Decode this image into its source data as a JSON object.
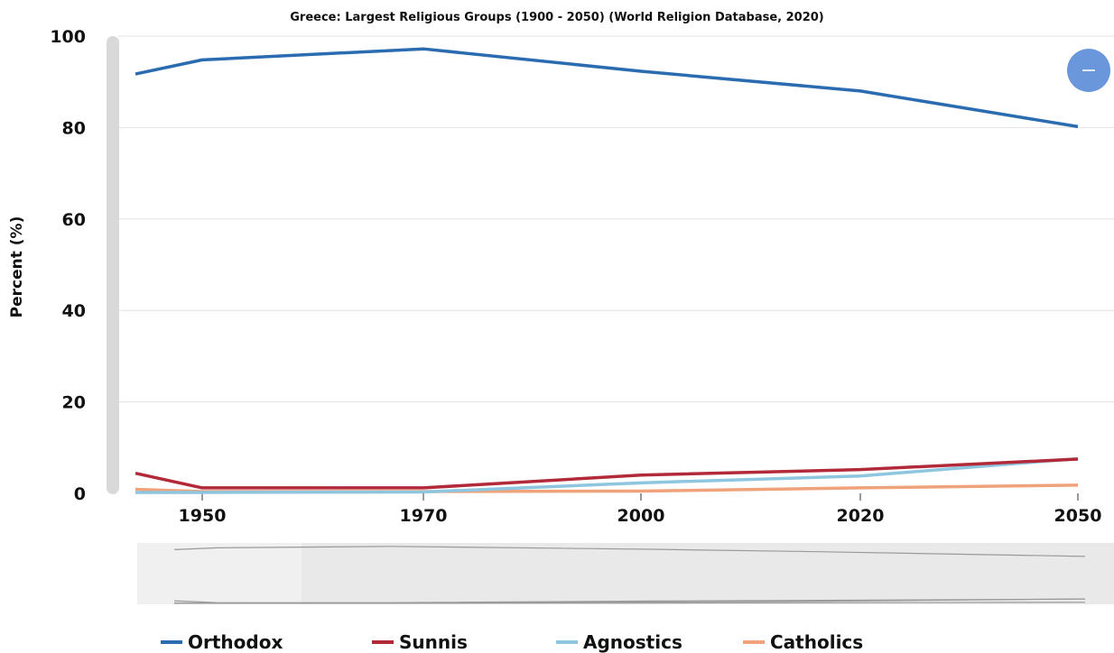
{
  "chart_data": {
    "type": "line",
    "title": "Greece: Largest Religious Groups  (1900 - 2050) (World Religion Database, 2020)",
    "xlabel": "",
    "ylabel": "Percent (%)",
    "x": [
      1945,
      1950,
      1970,
      2000,
      2020,
      2050
    ],
    "x_ticks": [
      1950,
      1970,
      2000,
      2020,
      2050
    ],
    "y_ticks": [
      0,
      20,
      40,
      60,
      80,
      100
    ],
    "ylim": [
      0,
      100
    ],
    "grid": true,
    "legend_position": "bottom",
    "series": [
      {
        "name": "Orthodox",
        "color": "#2b6cb0",
        "values": [
          91.7,
          94.8,
          97.2,
          92.3,
          88.0,
          80.2
        ]
      },
      {
        "name": "Sunnis",
        "color": "#b22a3a",
        "values": [
          4.4,
          1.2,
          1.2,
          4.0,
          5.2,
          7.5
        ]
      },
      {
        "name": "Agnostics",
        "color": "#8ec6e0",
        "values": [
          0.2,
          0.2,
          0.3,
          2.3,
          3.8,
          7.6
        ]
      },
      {
        "name": "Catholics",
        "color": "#f0a27a",
        "values": [
          0.9,
          0.4,
          0.4,
          0.5,
          1.2,
          1.8
        ]
      }
    ]
  },
  "controls": {
    "zoom_button_color": "#6a96dc",
    "zoom_icon": "minus-icon"
  }
}
